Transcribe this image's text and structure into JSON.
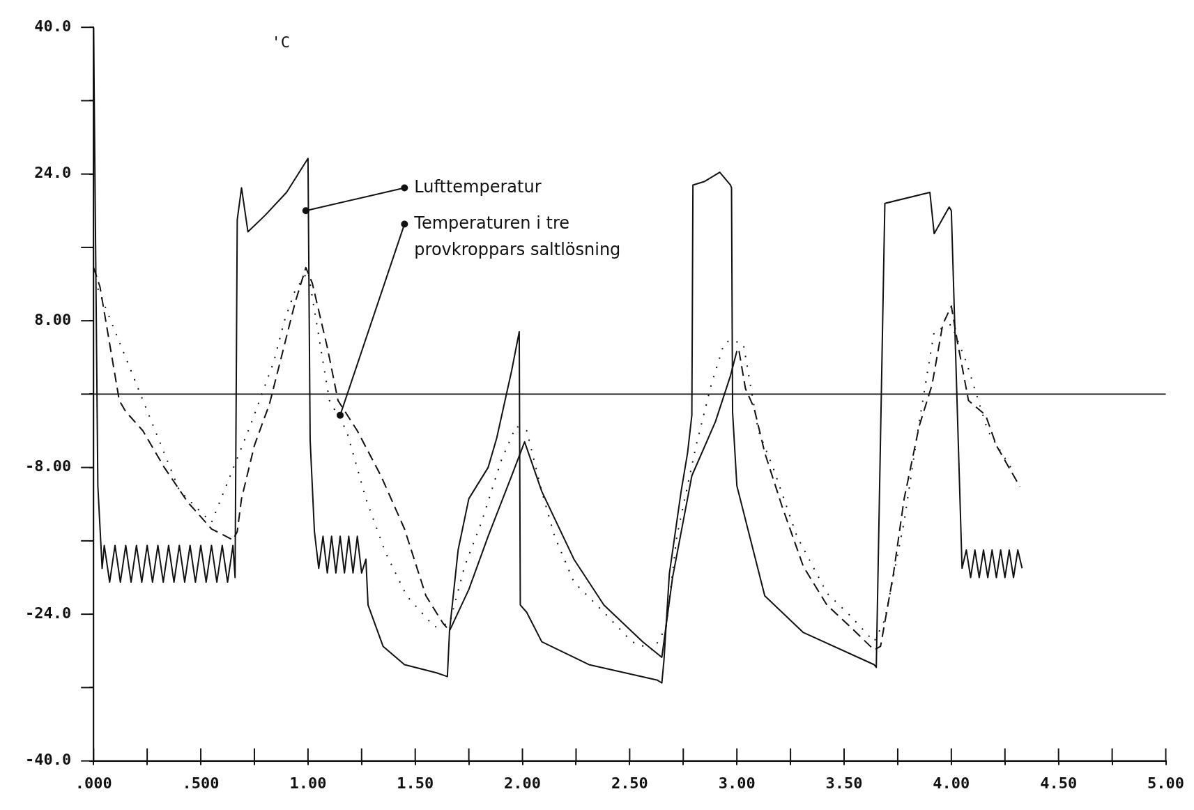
{
  "chart_data": {
    "type": "line",
    "ylabel": "'C",
    "xlim": [
      0,
      5
    ],
    "ylim": [
      -40,
      40
    ],
    "xticks": [
      {
        "value": 0,
        "label": ".000"
      },
      {
        "value": 0.25,
        "label": null
      },
      {
        "value": 0.5,
        "label": ".500"
      },
      {
        "value": 0.75,
        "label": null
      },
      {
        "value": 1,
        "label": "1.00"
      },
      {
        "value": 1.25,
        "label": null
      },
      {
        "value": 1.5,
        "label": "1.50"
      },
      {
        "value": 1.75,
        "label": null
      },
      {
        "value": 2,
        "label": "2.00"
      },
      {
        "value": 2.25,
        "label": null
      },
      {
        "value": 2.5,
        "label": "2.50"
      },
      {
        "value": 2.75,
        "label": null
      },
      {
        "value": 3,
        "label": "3.00"
      },
      {
        "value": 3.25,
        "label": null
      },
      {
        "value": 3.5,
        "label": "3.50"
      },
      {
        "value": 3.75,
        "label": null
      },
      {
        "value": 4,
        "label": "4.00"
      },
      {
        "value": 4.25,
        "label": null
      },
      {
        "value": 4.5,
        "label": "4.50"
      },
      {
        "value": 4.75,
        "label": null
      },
      {
        "value": 5,
        "label": "5.00"
      }
    ],
    "yticks": [
      {
        "value": -40,
        "label": "-40.0"
      },
      {
        "value": -32,
        "label": null
      },
      {
        "value": -24,
        "label": "-24.0"
      },
      {
        "value": -16,
        "label": null
      },
      {
        "value": -8,
        "label": "-8.00"
      },
      {
        "value": 0,
        "label": null
      },
      {
        "value": 8,
        "label": "8.00"
      },
      {
        "value": 16,
        "label": null
      },
      {
        "value": 24,
        "label": "24.0"
      },
      {
        "value": 32,
        "label": null
      },
      {
        "value": 40,
        "label": "40.0"
      }
    ],
    "grid": false,
    "legend": false,
    "marker": "none",
    "ref_lines": [
      {
        "axis": "y",
        "value": 0
      }
    ],
    "annotations": [
      {
        "text": "Lufttemperatur",
        "x": 0.99,
        "y": 20
      },
      {
        "text": "Temperaturen i tre provkroppars saltlösning",
        "x": 1.15,
        "y": -2.3
      }
    ],
    "series": [
      {
        "color": "#111111",
        "line_style": "solid",
        "x": [
          0,
          0.02,
          0.04,
          0.05,
          0.075,
          0.1,
          0.125,
          0.15,
          0.175,
          0.2,
          0.225,
          0.25,
          0.275,
          0.3,
          0.325,
          0.35,
          0.375,
          0.4,
          0.425,
          0.45,
          0.475,
          0.5,
          0.525,
          0.55,
          0.575,
          0.6,
          0.625,
          0.65,
          0.66,
          0.67,
          0.69,
          0.72,
          0.8,
          0.9,
          1.0,
          1.01,
          1.03,
          1.05,
          1.07,
          1.09,
          1.11,
          1.13,
          1.15,
          1.17,
          1.19,
          1.21,
          1.23,
          1.25,
          1.27,
          1.28,
          1.35,
          1.45,
          1.6,
          1.65,
          1.66,
          1.7,
          1.75,
          1.84,
          1.88,
          1.95,
          1.985,
          1.99,
          2.02,
          2.09,
          2.31,
          2.63,
          2.65,
          2.66,
          2.685,
          2.74,
          2.77,
          2.79,
          2.795,
          2.85,
          2.92,
          2.97,
          2.975,
          2.98,
          3.0,
          3.13,
          3.31,
          3.64,
          3.65,
          3.69,
          3.9,
          3.92,
          3.99,
          4.0,
          4.05,
          4.07,
          4.09,
          4.11,
          4.13,
          4.15,
          4.17,
          4.19,
          4.21,
          4.23,
          4.25,
          4.27,
          4.29,
          4.31,
          4.33
        ],
        "values": [
          40,
          -10,
          -19,
          -16.5,
          -20.5,
          -16.5,
          -20.5,
          -16.5,
          -20.5,
          -16.5,
          -20.5,
          -16.5,
          -20.5,
          -16.5,
          -20.5,
          -16.5,
          -20.5,
          -16.5,
          -20.5,
          -16.5,
          -20.5,
          -16.5,
          -20.5,
          -16.5,
          -20.5,
          -16.5,
          -20.5,
          -16.5,
          -20,
          19,
          22.5,
          17.7,
          19.5,
          22,
          25.7,
          -5,
          -15,
          -19,
          -15.5,
          -19.5,
          -15.5,
          -19.5,
          -15.5,
          -19.5,
          -15.5,
          -19.5,
          -15.5,
          -19.5,
          -18,
          -23,
          -27.5,
          -29.5,
          -30.4,
          -30.8,
          -25.8,
          -17,
          -11.4,
          -8,
          -4.8,
          2.6,
          6.8,
          -23,
          -23.8,
          -27,
          -29.5,
          -31.2,
          -31.5,
          -29,
          -19.6,
          -10.6,
          -6.4,
          -2.3,
          22.8,
          23.2,
          24.2,
          22.8,
          22.5,
          -2,
          -10,
          -22,
          -26,
          -29.5,
          -29.8,
          20.8,
          22,
          17.5,
          20.4,
          20,
          -19,
          -17,
          -20,
          -17,
          -20,
          -17,
          -20,
          -17,
          -20,
          -17,
          -20,
          -17,
          -20,
          -17,
          -19
        ]
      },
      {
        "color": "#111111",
        "line_style": "dashed",
        "x": [
          0,
          0.03,
          0.12,
          0.15,
          0.23,
          0.33,
          0.44,
          0.55,
          0.65,
          0.67,
          0.69,
          0.75,
          0.82,
          0.87,
          0.94,
          0.99,
          1.02,
          1.09,
          1.14,
          1.23,
          1.34,
          1.45,
          1.55,
          1.63,
          1.66,
          2.3,
          3.01,
          3.04,
          3.08,
          3.13,
          3.21,
          3.31,
          3.42,
          3.53,
          3.64,
          3.67,
          3.73,
          3.78,
          3.85,
          3.91,
          3.96,
          4.0,
          4.03,
          4.08,
          4.16,
          4.21,
          4.32
        ],
        "values": [
          13.8,
          11.7,
          -0.7,
          -1.9,
          -4,
          -8,
          -11.8,
          -14.7,
          -15.9,
          -15,
          -11.4,
          -5.6,
          -1.1,
          3.5,
          10,
          13.8,
          12.1,
          5.1,
          -0.7,
          -4,
          -8.9,
          -14.7,
          -22,
          -25,
          -25.8,
          null,
          4.7,
          0.6,
          -1.5,
          -6.4,
          -12.2,
          -18.8,
          -23,
          -25.4,
          -27.9,
          -27.5,
          -19.6,
          -11.4,
          -3.5,
          1,
          7.6,
          9.6,
          5.5,
          -0.7,
          -2.3,
          -5.6,
          -10.1
        ]
      },
      {
        "color": "#111111",
        "line_style": "solid",
        "x": [
          1.66,
          1.75,
          1.84,
          1.95,
          2.01,
          2.09,
          2.24,
          2.38,
          2.56,
          2.65,
          2.7,
          2.79,
          2.9,
          2.97,
          3.0
        ],
        "values": [
          -25.8,
          -21.3,
          -15.5,
          -8.9,
          -5.2,
          -10.6,
          -18,
          -23,
          -27,
          -28.7,
          -20,
          -8.9,
          -3,
          2,
          4.7
        ]
      },
      {
        "color": "#111111",
        "line_style": "dotted",
        "x": [
          0.02,
          0.4,
          0.55,
          0.73,
          0.84,
          0.89,
          0.94,
          1.0,
          1.1,
          1.18,
          1.27,
          1.36,
          1.46,
          1.59,
          1.66,
          1.73,
          1.81,
          1.9,
          1.97,
          2.02,
          2.09,
          2.15,
          2.24,
          2.38,
          2.51,
          2.61,
          2.67,
          2.72,
          2.81,
          2.88,
          2.94,
          2.97,
          3.03,
          3.1,
          3.17,
          3.28,
          3.42,
          3.53,
          3.64,
          3.69,
          3.78,
          3.85,
          3.92,
          4.0,
          4.07,
          4.17,
          4.28
        ],
        "values": [
          11.5,
          -10.5,
          -14,
          -3.5,
          3.5,
          8,
          11.3,
          13.4,
          -0.7,
          -4,
          -11.4,
          -17.2,
          -22,
          -25.4,
          -25,
          -18.8,
          -13.9,
          -7.3,
          -3.5,
          -4,
          -10.6,
          -15.5,
          -20.5,
          -23.8,
          -27,
          -27.9,
          -25.4,
          -15.5,
          -5.6,
          1,
          5.5,
          5.9,
          5.5,
          -4,
          -8.1,
          -15.5,
          -21.7,
          -24.2,
          -27,
          -24.6,
          -13.9,
          -3.1,
          6.8,
          7.6,
          3.5,
          -4,
          -8.1
        ]
      }
    ]
  }
}
